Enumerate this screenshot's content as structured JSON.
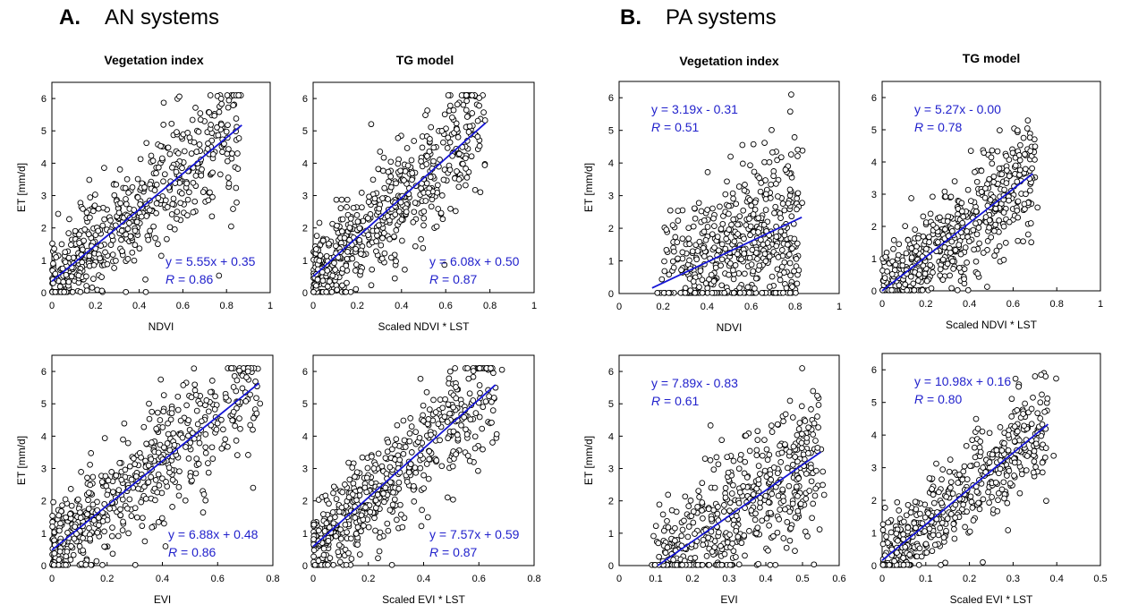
{
  "figure": {
    "panel_A": {
      "letter": "A.",
      "title": "AN systems"
    },
    "panel_B": {
      "letter": "B.",
      "title": "PA systems"
    },
    "column_titles": [
      "Vegetation index",
      "TG model",
      "Vegetation index",
      "TG model"
    ]
  },
  "chart_data": [
    {
      "type": "scatter",
      "panel": "A",
      "column": "Vegetation index",
      "xlabel": "NDVI",
      "ylabel": "ET [mm/d]",
      "xlim": [
        0,
        1
      ],
      "ylim": [
        0,
        6.5
      ],
      "xticks": [
        "0",
        "0.2",
        "0.4",
        "0.6",
        "0.8",
        "1"
      ],
      "yticks": [
        "0",
        "1",
        "2",
        "3",
        "4",
        "5",
        "6"
      ],
      "fit": {
        "slope": 5.55,
        "intercept": 0.35,
        "x_range": [
          0,
          0.87
        ]
      },
      "equation": "y = 5.55x + 0.35",
      "r_label": "R",
      "r_value": "= 0.86",
      "annotation_position": "bottom-right"
    },
    {
      "type": "scatter",
      "panel": "A",
      "column": "TG model",
      "xlabel": "Scaled NDVI * LST",
      "ylabel": "",
      "xlim": [
        0,
        1
      ],
      "ylim": [
        0,
        6.5
      ],
      "xticks": [
        "0",
        "0.2",
        "0.4",
        "0.6",
        "0.8",
        "1"
      ],
      "yticks": [
        "0",
        "1",
        "2",
        "3",
        "4",
        "5",
        "6"
      ],
      "fit": {
        "slope": 6.08,
        "intercept": 0.5,
        "x_range": [
          0,
          0.78
        ]
      },
      "equation": "y = 6.08x + 0.50",
      "r_label": "R",
      "r_value": "= 0.87",
      "annotation_position": "bottom-right"
    },
    {
      "type": "scatter",
      "panel": "B",
      "column": "Vegetation index",
      "xlabel": "NDVI",
      "ylabel": "ET [mm/d]",
      "xlim": [
        0,
        1
      ],
      "ylim": [
        0,
        6.5
      ],
      "xticks": [
        "0",
        "0.2",
        "0.4",
        "0.6",
        "0.8",
        "1"
      ],
      "yticks": [
        "0",
        "1",
        "2",
        "3",
        "4",
        "5",
        "6"
      ],
      "fit": {
        "slope": 3.19,
        "intercept": -0.31,
        "x_range": [
          0.15,
          0.83
        ]
      },
      "equation": "y = 3.19x - 0.31",
      "r_label": "R",
      "r_value": "= 0.51",
      "annotation_position": "top-left"
    },
    {
      "type": "scatter",
      "panel": "B",
      "column": "TG model",
      "xlabel": "Scaled NDVI * LST",
      "ylabel": "",
      "xlim": [
        0,
        1
      ],
      "ylim": [
        0,
        6.5
      ],
      "xticks": [
        "0",
        "0.2",
        "0.4",
        "0.6",
        "0.8",
        "1"
      ],
      "yticks": [
        "0",
        "1",
        "2",
        "3",
        "4",
        "5",
        "6"
      ],
      "fit": {
        "slope": 5.27,
        "intercept": 0.0,
        "x_range": [
          0,
          0.69
        ]
      },
      "equation": "y = 5.27x - 0.00",
      "r_label": "R",
      "r_value": "= 0.78",
      "annotation_position": "top-left"
    },
    {
      "type": "scatter",
      "panel": "A",
      "column": "Vegetation index",
      "xlabel": "EVI",
      "ylabel": "ET [mm/d]",
      "xlim": [
        0,
        0.8
      ],
      "ylim": [
        0,
        6.5
      ],
      "xticks": [
        "0",
        "0.2",
        "0.4",
        "0.6",
        "0.8"
      ],
      "yticks": [
        "0",
        "1",
        "2",
        "3",
        "4",
        "5",
        "6"
      ],
      "fit": {
        "slope": 6.88,
        "intercept": 0.48,
        "x_range": [
          0,
          0.75
        ]
      },
      "equation": "y = 6.88x + 0.48",
      "r_label": "R",
      "r_value": "= 0.86",
      "annotation_position": "bottom-right"
    },
    {
      "type": "scatter",
      "panel": "A",
      "column": "TG model",
      "xlabel": "Scaled EVI * LST",
      "ylabel": "",
      "xlim": [
        0,
        0.8
      ],
      "ylim": [
        0,
        6.5
      ],
      "xticks": [
        "0",
        "0.2",
        "0.4",
        "0.6",
        "0.8"
      ],
      "yticks": [
        "0",
        "1",
        "2",
        "3",
        "4",
        "5",
        "6"
      ],
      "fit": {
        "slope": 7.57,
        "intercept": 0.59,
        "x_range": [
          0,
          0.66
        ]
      },
      "equation": "y = 7.57x + 0.59",
      "r_label": "R",
      "r_value": "= 0.87",
      "annotation_position": "bottom-right"
    },
    {
      "type": "scatter",
      "panel": "B",
      "column": "Vegetation index",
      "xlabel": "EVI",
      "ylabel": "ET [mm/d]",
      "xlim": [
        0,
        0.6
      ],
      "ylim": [
        0,
        6.5
      ],
      "xticks": [
        "0",
        "0.1",
        "0.2",
        "0.3",
        "0.4",
        "0.5",
        "0.6"
      ],
      "yticks": [
        "0",
        "1",
        "2",
        "3",
        "4",
        "5",
        "6"
      ],
      "fit": {
        "slope": 7.89,
        "intercept": -0.83,
        "x_range": [
          0.105,
          0.55
        ]
      },
      "equation": "y = 7.89x - 0.83",
      "r_label": "R",
      "r_value": "= 0.61",
      "annotation_position": "top-left"
    },
    {
      "type": "scatter",
      "panel": "B",
      "column": "TG model",
      "xlabel": "Scaled EVI * LST",
      "ylabel": "",
      "xlim": [
        0,
        0.5
      ],
      "ylim": [
        0,
        6.5
      ],
      "xticks": [
        "0",
        "0.1",
        "0.2",
        "0.3",
        "0.4",
        "0.5"
      ],
      "yticks": [
        "0",
        "1",
        "2",
        "3",
        "4",
        "5",
        "6"
      ],
      "fit": {
        "slope": 10.98,
        "intercept": 0.16,
        "x_range": [
          0,
          0.38
        ]
      },
      "equation": "y = 10.98x + 0.16",
      "r_label": "R",
      "r_value": "= 0.80",
      "annotation_position": "top-left"
    }
  ],
  "style": {
    "fit_line_color": "#1515d6",
    "annotation_color": "#2222cc",
    "marker": "open-circle"
  }
}
